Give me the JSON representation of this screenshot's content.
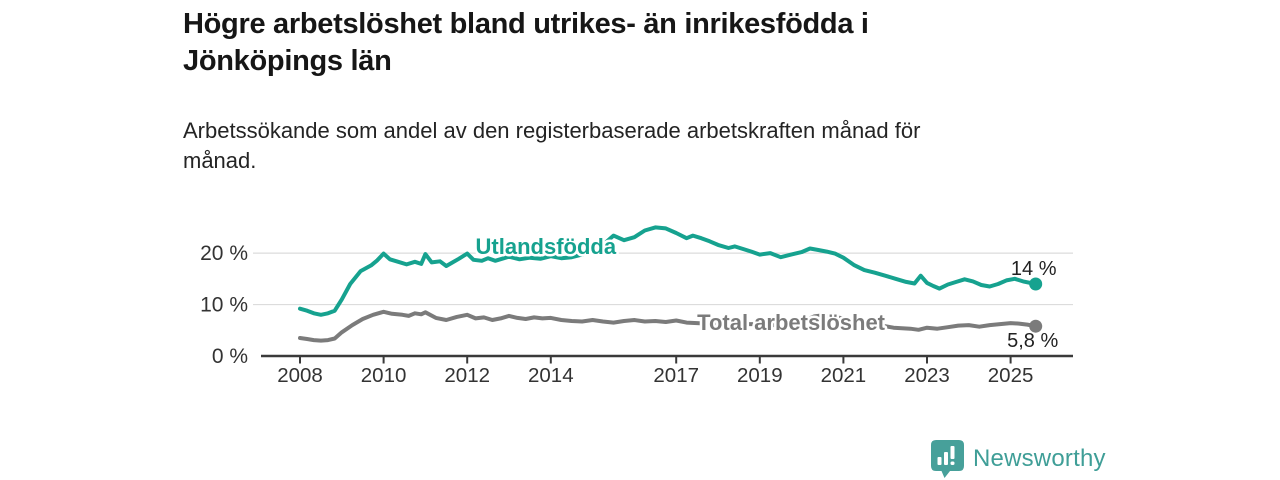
{
  "header": {
    "title": "Högre arbetslöshet bland utrikes- än inrikesfödda i\nJönköpings län",
    "subtitle": "Arbetssökande som andel av den registerbaserade arbetskraften månad för\nmånad."
  },
  "footer": {
    "brand": "Newsworthy",
    "logo_icon": "speech-bubble-bar-chart"
  },
  "chart_data": {
    "type": "line",
    "title": "Högre arbetslöshet bland utrikes- än inrikesfödda i Jönköpings län",
    "subtitle": "Arbetssökande som andel av den registerbaserade arbetskraften månad för månad.",
    "unit": "%",
    "grid": "horizontal-light",
    "legend_position": "inline-labels",
    "x_axis": {
      "range": [
        2008,
        2025.7
      ],
      "ticks": [
        2008,
        2010,
        2012,
        2014,
        2017,
        2019,
        2021,
        2023,
        2025
      ]
    },
    "y_axis": {
      "range": [
        0,
        26
      ],
      "ticks": [
        {
          "v": 0,
          "label": "0 %"
        },
        {
          "v": 10,
          "label": "10 %"
        },
        {
          "v": 20,
          "label": "20 %"
        }
      ]
    },
    "colors": {
      "utlandsfodda": "#16a28f",
      "total": "#7b7b7b",
      "gridline": "#dcdcdc",
      "axis": "#3a3a3a",
      "value_label": "#222222"
    },
    "series": [
      {
        "id": "utlandsfodda",
        "name": "Utlandsfödda",
        "color": "#16a28f",
        "end_label": "14 %",
        "end_label_offset": {
          "dx": -2,
          "dy": -9
        },
        "label_anchor": {
          "t": 2013.88,
          "v": 19.8
        },
        "points": [
          [
            2008.0,
            9.2
          ],
          [
            2008.17,
            8.8
          ],
          [
            2008.33,
            8.3
          ],
          [
            2008.5,
            8.0
          ],
          [
            2008.67,
            8.3
          ],
          [
            2008.83,
            8.8
          ],
          [
            2009.0,
            11.0
          ],
          [
            2009.2,
            14.0
          ],
          [
            2009.45,
            16.5
          ],
          [
            2009.7,
            17.6
          ],
          [
            2009.85,
            18.6
          ],
          [
            2010.0,
            19.9
          ],
          [
            2010.15,
            18.8
          ],
          [
            2010.35,
            18.3
          ],
          [
            2010.55,
            17.8
          ],
          [
            2010.75,
            18.3
          ],
          [
            2010.9,
            17.9
          ],
          [
            2011.0,
            19.8
          ],
          [
            2011.15,
            18.2
          ],
          [
            2011.35,
            18.4
          ],
          [
            2011.5,
            17.5
          ],
          [
            2011.65,
            18.2
          ],
          [
            2011.8,
            18.9
          ],
          [
            2012.0,
            19.9
          ],
          [
            2012.15,
            18.7
          ],
          [
            2012.35,
            18.5
          ],
          [
            2012.5,
            19.0
          ],
          [
            2012.67,
            18.5
          ],
          [
            2012.83,
            18.9
          ],
          [
            2013.0,
            19.3
          ],
          [
            2013.25,
            18.8
          ],
          [
            2013.5,
            19.1
          ],
          [
            2013.75,
            18.9
          ],
          [
            2014.0,
            19.4
          ],
          [
            2014.25,
            19.0
          ],
          [
            2014.5,
            19.2
          ],
          [
            2014.75,
            19.7
          ],
          [
            2015.0,
            20.4
          ],
          [
            2015.25,
            21.6
          ],
          [
            2015.5,
            23.4
          ],
          [
            2015.75,
            22.5
          ],
          [
            2016.0,
            23.1
          ],
          [
            2016.25,
            24.4
          ],
          [
            2016.5,
            25.0
          ],
          [
            2016.75,
            24.8
          ],
          [
            2017.0,
            23.9
          ],
          [
            2017.25,
            22.9
          ],
          [
            2017.4,
            23.4
          ],
          [
            2017.6,
            22.9
          ],
          [
            2017.8,
            22.3
          ],
          [
            2018.0,
            21.6
          ],
          [
            2018.25,
            21.0
          ],
          [
            2018.4,
            21.3
          ],
          [
            2018.6,
            20.8
          ],
          [
            2018.8,
            20.3
          ],
          [
            2019.0,
            19.7
          ],
          [
            2019.25,
            20.0
          ],
          [
            2019.5,
            19.2
          ],
          [
            2019.75,
            19.7
          ],
          [
            2020.0,
            20.2
          ],
          [
            2020.2,
            20.9
          ],
          [
            2020.4,
            20.6
          ],
          [
            2020.6,
            20.3
          ],
          [
            2020.8,
            19.9
          ],
          [
            2021.0,
            19.1
          ],
          [
            2021.25,
            17.7
          ],
          [
            2021.5,
            16.7
          ],
          [
            2021.75,
            16.2
          ],
          [
            2022.0,
            15.6
          ],
          [
            2022.25,
            15.0
          ],
          [
            2022.5,
            14.4
          ],
          [
            2022.7,
            14.1
          ],
          [
            2022.85,
            15.6
          ],
          [
            2023.0,
            14.2
          ],
          [
            2023.15,
            13.6
          ],
          [
            2023.3,
            13.1
          ],
          [
            2023.5,
            13.9
          ],
          [
            2023.7,
            14.4
          ],
          [
            2023.9,
            14.9
          ],
          [
            2024.1,
            14.5
          ],
          [
            2024.3,
            13.8
          ],
          [
            2024.5,
            13.5
          ],
          [
            2024.7,
            14.0
          ],
          [
            2024.9,
            14.7
          ],
          [
            2025.1,
            15.0
          ],
          [
            2025.3,
            14.5
          ],
          [
            2025.6,
            14.0
          ]
        ]
      },
      {
        "id": "total",
        "name": "Total arbetslöshet",
        "color": "#7b7b7b",
        "end_label": "5,8 %",
        "end_label_offset": {
          "dx": -3,
          "dy": 21
        },
        "label_anchor": {
          "t": 2019.75,
          "v": 5.05
        },
        "points": [
          [
            2008.0,
            3.5
          ],
          [
            2008.17,
            3.3
          ],
          [
            2008.33,
            3.1
          ],
          [
            2008.5,
            3.0
          ],
          [
            2008.67,
            3.1
          ],
          [
            2008.83,
            3.4
          ],
          [
            2009.0,
            4.6
          ],
          [
            2009.25,
            6.0
          ],
          [
            2009.5,
            7.2
          ],
          [
            2009.75,
            8.0
          ],
          [
            2010.0,
            8.6
          ],
          [
            2010.2,
            8.2
          ],
          [
            2010.45,
            8.0
          ],
          [
            2010.6,
            7.8
          ],
          [
            2010.75,
            8.3
          ],
          [
            2010.9,
            8.1
          ],
          [
            2011.0,
            8.5
          ],
          [
            2011.25,
            7.4
          ],
          [
            2011.5,
            7.0
          ],
          [
            2011.75,
            7.6
          ],
          [
            2012.0,
            8.0
          ],
          [
            2012.2,
            7.3
          ],
          [
            2012.4,
            7.5
          ],
          [
            2012.6,
            7.0
          ],
          [
            2012.8,
            7.3
          ],
          [
            2013.0,
            7.8
          ],
          [
            2013.2,
            7.4
          ],
          [
            2013.4,
            7.2
          ],
          [
            2013.6,
            7.5
          ],
          [
            2013.8,
            7.3
          ],
          [
            2014.0,
            7.4
          ],
          [
            2014.25,
            7.0
          ],
          [
            2014.5,
            6.8
          ],
          [
            2014.75,
            6.7
          ],
          [
            2015.0,
            7.0
          ],
          [
            2015.25,
            6.7
          ],
          [
            2015.5,
            6.5
          ],
          [
            2015.75,
            6.8
          ],
          [
            2016.0,
            7.0
          ],
          [
            2016.25,
            6.7
          ],
          [
            2016.5,
            6.8
          ],
          [
            2016.75,
            6.6
          ],
          [
            2017.0,
            6.9
          ],
          [
            2017.25,
            6.5
          ],
          [
            2017.5,
            6.4
          ],
          [
            2017.75,
            6.3
          ],
          [
            2018.0,
            6.4
          ],
          [
            2018.33,
            6.1
          ],
          [
            2018.67,
            6.2
          ],
          [
            2019.0,
            6.2
          ],
          [
            2019.33,
            6.0
          ],
          [
            2019.67,
            6.2
          ],
          [
            2020.0,
            6.6
          ],
          [
            2020.3,
            7.7
          ],
          [
            2020.5,
            7.9
          ],
          [
            2020.75,
            7.6
          ],
          [
            2021.0,
            7.3
          ],
          [
            2021.25,
            6.9
          ],
          [
            2021.5,
            6.5
          ],
          [
            2021.75,
            6.1
          ],
          [
            2022.0,
            5.8
          ],
          [
            2022.2,
            5.5
          ],
          [
            2022.4,
            5.4
          ],
          [
            2022.6,
            5.3
          ],
          [
            2022.8,
            5.1
          ],
          [
            2023.0,
            5.5
          ],
          [
            2023.25,
            5.3
          ],
          [
            2023.5,
            5.6
          ],
          [
            2023.75,
            5.9
          ],
          [
            2024.0,
            6.0
          ],
          [
            2024.25,
            5.7
          ],
          [
            2024.5,
            6.0
          ],
          [
            2024.75,
            6.2
          ],
          [
            2025.0,
            6.4
          ],
          [
            2025.2,
            6.3
          ],
          [
            2025.4,
            6.1
          ],
          [
            2025.6,
            5.8
          ]
        ]
      }
    ]
  }
}
